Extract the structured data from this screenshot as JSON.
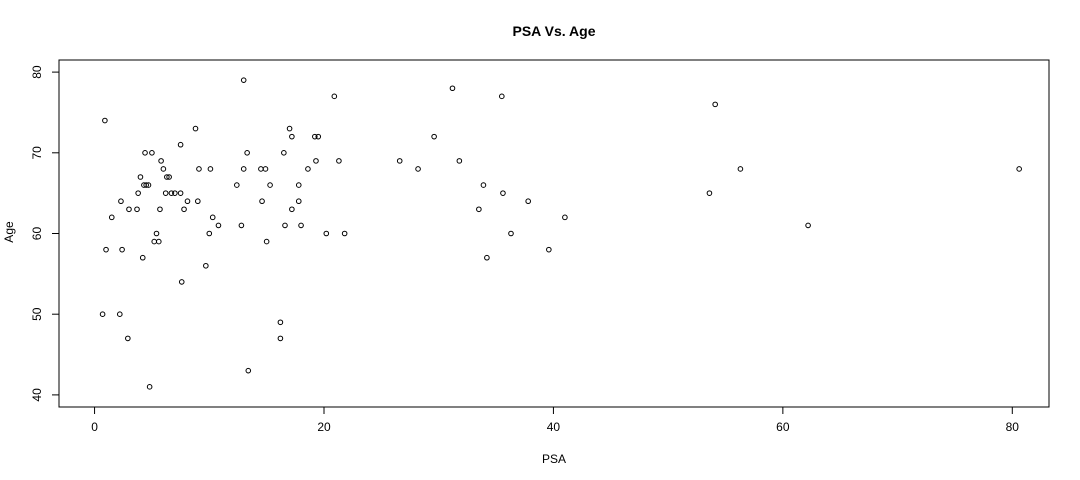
{
  "chart_data": {
    "type": "scatter",
    "title": "PSA Vs. Age",
    "xlabel": "PSA",
    "ylabel": "Age",
    "xlim": [
      -3.1,
      83.2
    ],
    "ylim": [
      38.5,
      81.5
    ],
    "xticks": [
      0,
      20,
      40,
      60,
      80
    ],
    "yticks": [
      40,
      50,
      60,
      70,
      80
    ],
    "grid": false,
    "marker": "open-circle",
    "points": [
      {
        "x": 0.7,
        "y": 50
      },
      {
        "x": 0.9,
        "y": 74
      },
      {
        "x": 1.0,
        "y": 58
      },
      {
        "x": 1.5,
        "y": 62
      },
      {
        "x": 2.2,
        "y": 50
      },
      {
        "x": 2.3,
        "y": 64
      },
      {
        "x": 2.4,
        "y": 58
      },
      {
        "x": 2.9,
        "y": 47
      },
      {
        "x": 3.0,
        "y": 63
      },
      {
        "x": 3.7,
        "y": 63
      },
      {
        "x": 3.8,
        "y": 65
      },
      {
        "x": 4.0,
        "y": 67
      },
      {
        "x": 4.2,
        "y": 57
      },
      {
        "x": 4.3,
        "y": 66
      },
      {
        "x": 4.4,
        "y": 70
      },
      {
        "x": 4.5,
        "y": 66
      },
      {
        "x": 4.7,
        "y": 66
      },
      {
        "x": 4.8,
        "y": 41
      },
      {
        "x": 5.0,
        "y": 70
      },
      {
        "x": 5.2,
        "y": 59
      },
      {
        "x": 5.4,
        "y": 60
      },
      {
        "x": 5.6,
        "y": 59
      },
      {
        "x": 5.7,
        "y": 63
      },
      {
        "x": 5.8,
        "y": 69
      },
      {
        "x": 6.0,
        "y": 68
      },
      {
        "x": 6.2,
        "y": 65
      },
      {
        "x": 6.3,
        "y": 67
      },
      {
        "x": 6.5,
        "y": 67
      },
      {
        "x": 6.7,
        "y": 65
      },
      {
        "x": 7.0,
        "y": 65
      },
      {
        "x": 7.5,
        "y": 71
      },
      {
        "x": 7.5,
        "y": 65
      },
      {
        "x": 7.6,
        "y": 54
      },
      {
        "x": 7.8,
        "y": 63
      },
      {
        "x": 8.1,
        "y": 64
      },
      {
        "x": 8.8,
        "y": 73
      },
      {
        "x": 9.0,
        "y": 64
      },
      {
        "x": 9.1,
        "y": 68
      },
      {
        "x": 9.7,
        "y": 56
      },
      {
        "x": 10.0,
        "y": 60
      },
      {
        "x": 10.1,
        "y": 68
      },
      {
        "x": 10.3,
        "y": 62
      },
      {
        "x": 10.8,
        "y": 61
      },
      {
        "x": 12.4,
        "y": 66
      },
      {
        "x": 12.8,
        "y": 61
      },
      {
        "x": 13.0,
        "y": 79
      },
      {
        "x": 13.0,
        "y": 68
      },
      {
        "x": 13.3,
        "y": 70
      },
      {
        "x": 13.4,
        "y": 43
      },
      {
        "x": 14.5,
        "y": 68
      },
      {
        "x": 14.6,
        "y": 64
      },
      {
        "x": 14.9,
        "y": 68
      },
      {
        "x": 15.0,
        "y": 59
      },
      {
        "x": 15.3,
        "y": 66
      },
      {
        "x": 16.2,
        "y": 49
      },
      {
        "x": 16.2,
        "y": 47
      },
      {
        "x": 16.5,
        "y": 70
      },
      {
        "x": 16.6,
        "y": 61
      },
      {
        "x": 17.0,
        "y": 73
      },
      {
        "x": 17.2,
        "y": 72
      },
      {
        "x": 17.2,
        "y": 63
      },
      {
        "x": 17.8,
        "y": 66
      },
      {
        "x": 17.8,
        "y": 64
      },
      {
        "x": 18.0,
        "y": 61
      },
      {
        "x": 18.6,
        "y": 68
      },
      {
        "x": 19.2,
        "y": 72
      },
      {
        "x": 19.3,
        "y": 69
      },
      {
        "x": 19.5,
        "y": 72
      },
      {
        "x": 20.2,
        "y": 60
      },
      {
        "x": 20.9,
        "y": 77
      },
      {
        "x": 21.3,
        "y": 69
      },
      {
        "x": 21.8,
        "y": 60
      },
      {
        "x": 26.6,
        "y": 69
      },
      {
        "x": 28.2,
        "y": 68
      },
      {
        "x": 29.6,
        "y": 72
      },
      {
        "x": 31.2,
        "y": 78
      },
      {
        "x": 31.8,
        "y": 69
      },
      {
        "x": 33.5,
        "y": 63
      },
      {
        "x": 33.9,
        "y": 66
      },
      {
        "x": 34.2,
        "y": 57
      },
      {
        "x": 35.5,
        "y": 77
      },
      {
        "x": 35.6,
        "y": 65
      },
      {
        "x": 36.3,
        "y": 60
      },
      {
        "x": 37.8,
        "y": 64
      },
      {
        "x": 39.6,
        "y": 58
      },
      {
        "x": 41.0,
        "y": 62
      },
      {
        "x": 53.6,
        "y": 65
      },
      {
        "x": 54.1,
        "y": 76
      },
      {
        "x": 56.3,
        "y": 68
      },
      {
        "x": 62.2,
        "y": 61
      },
      {
        "x": 80.6,
        "y": 68
      }
    ]
  }
}
